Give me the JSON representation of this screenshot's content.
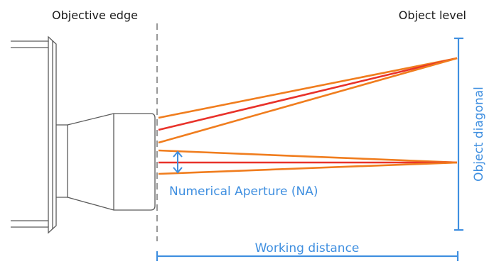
{
  "labels": {
    "objective_edge": "Objective edge",
    "object_level": "Object level",
    "object_diagonal": "Object diagonal",
    "numerical_aperture": "Numerical Aperture (NA)",
    "working_distance": "Working distance"
  },
  "colors": {
    "outline": "#5a5a5a",
    "dashed_edge": "#9a9a9a",
    "ray_orange": "#f07d1e",
    "ray_red": "#e8322a",
    "annotation_blue": "#3f8fe0",
    "text_dark": "#1a1a1a"
  }
}
